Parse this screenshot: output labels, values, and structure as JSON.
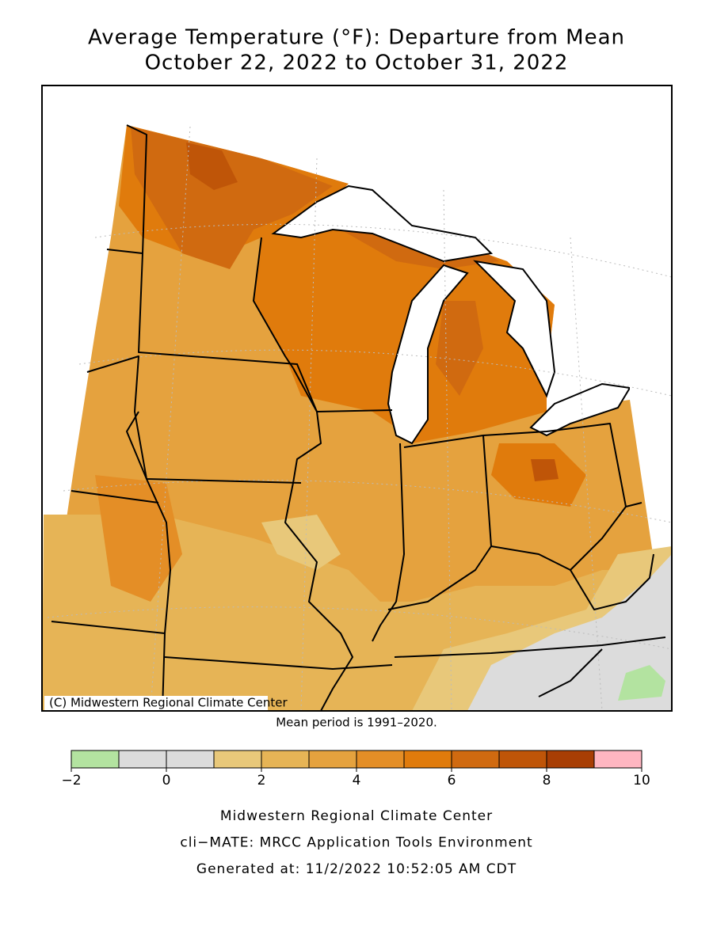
{
  "title": "Average Temperature (°F): Departure from Mean",
  "subtitle": "October 22, 2022 to October 31, 2022",
  "map": {
    "credit": "(C) Midwestern Regional Climate Center"
  },
  "mean_period": "Mean period is 1991–2020.",
  "legend": {
    "bins": [
      -2,
      -1,
      0,
      1,
      2,
      3,
      4,
      5,
      6,
      7,
      8,
      9,
      10
    ],
    "colors": [
      "#b3e3a0",
      "#dcdcdc",
      "#dcdcdc",
      "#e8c87a",
      "#e6b456",
      "#e5a23e",
      "#e48e26",
      "#e07b0c",
      "#d06a10",
      "#bf5508",
      "#a83e04",
      "#ffb6c1"
    ],
    "ticks": [
      {
        "value": -2,
        "label": "−2"
      },
      0,
      2,
      4,
      6,
      8,
      10
    ]
  },
  "footer": [
    "Midwestern Regional Climate Center",
    "cli−MATE: MRCC Application Tools Environment",
    "Generated at: 11/2/2022 10:52:05 AM CDT"
  ]
}
